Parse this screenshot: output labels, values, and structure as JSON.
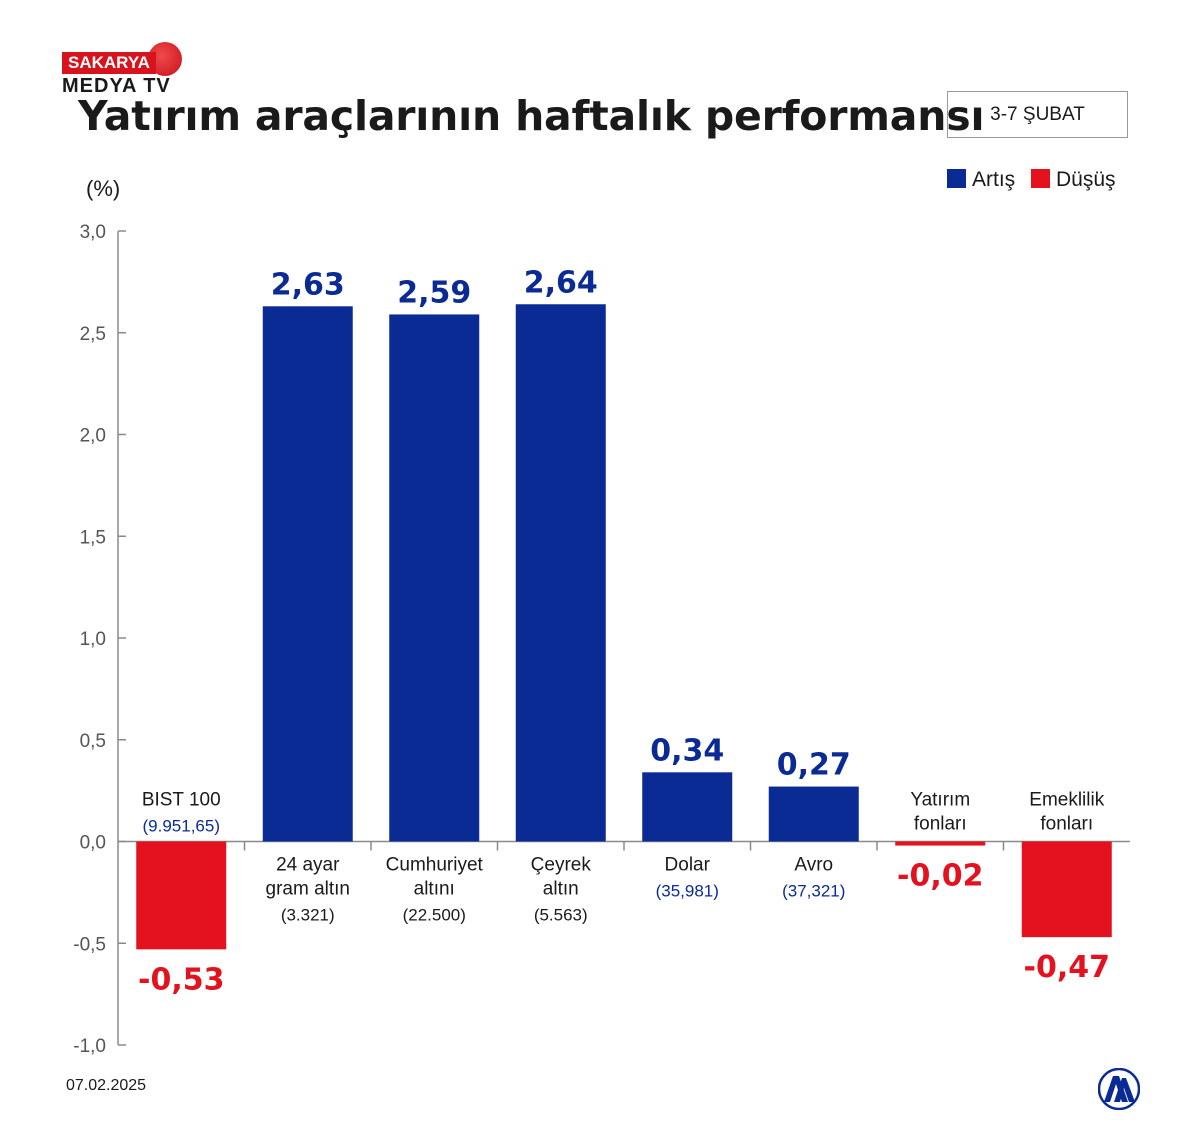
{
  "logo": {
    "top_text": "SAKARYA",
    "bottom_text": "MEDYA TV",
    "red": "#d7141d"
  },
  "title": "Yatırım araçlarının haftalık performansı",
  "date_range": "3-7 ŞUBAT",
  "legend": [
    {
      "label": "Artış",
      "color": "#0a2b94"
    },
    {
      "label": "Düşüş",
      "color": "#e3121e"
    }
  ],
  "unit_label": "(%)",
  "footer_date": "07.02.2025",
  "agency_logo": "aa-logo-icon",
  "chart_data": {
    "type": "bar",
    "title": "Yatırım araçlarının haftalık performansı",
    "ylabel": "(%)",
    "ylim": [
      -1.0,
      3.0
    ],
    "yticks": [
      "3,0",
      "2,5",
      "2,0",
      "1,5",
      "1,0",
      "0,5",
      "0,0",
      "-0,5",
      "-1,0"
    ],
    "ytick_values": [
      3.0,
      2.5,
      2.0,
      1.5,
      1.0,
      0.5,
      0.0,
      -0.5,
      -1.0
    ],
    "grid": false,
    "legend_position": "top-right",
    "colors": {
      "positive": "#0a2b94",
      "negative": "#e3121e",
      "axis": "#8a8a8a",
      "tick_text": "#555555"
    },
    "categories": [
      {
        "name_lines": [
          "BIST 100"
        ],
        "sub": "(9.951,65)",
        "value": -0.53,
        "value_label": "-0,53"
      },
      {
        "name_lines": [
          "24 ayar",
          "gram altın"
        ],
        "sub": "(3.321)",
        "value": 2.63,
        "value_label": "2,63"
      },
      {
        "name_lines": [
          "Cumhuriyet",
          "altını"
        ],
        "sub": "(22.500)",
        "value": 2.59,
        "value_label": "2,59"
      },
      {
        "name_lines": [
          "Çeyrek",
          "altın"
        ],
        "sub": "(5.563)",
        "value": 2.64,
        "value_label": "2,64"
      },
      {
        "name_lines": [
          "Dolar"
        ],
        "sub": "(35,981)",
        "value": 0.34,
        "value_label": "0,34"
      },
      {
        "name_lines": [
          "Avro"
        ],
        "sub": "(37,321)",
        "value": 0.27,
        "value_label": "0,27"
      },
      {
        "name_lines": [
          "Yatırım",
          "fonları"
        ],
        "sub": "",
        "value": -0.02,
        "value_label": "-0,02"
      },
      {
        "name_lines": [
          "Emeklilik",
          "fonları"
        ],
        "sub": "",
        "value": -0.47,
        "value_label": "-0,47"
      }
    ]
  }
}
